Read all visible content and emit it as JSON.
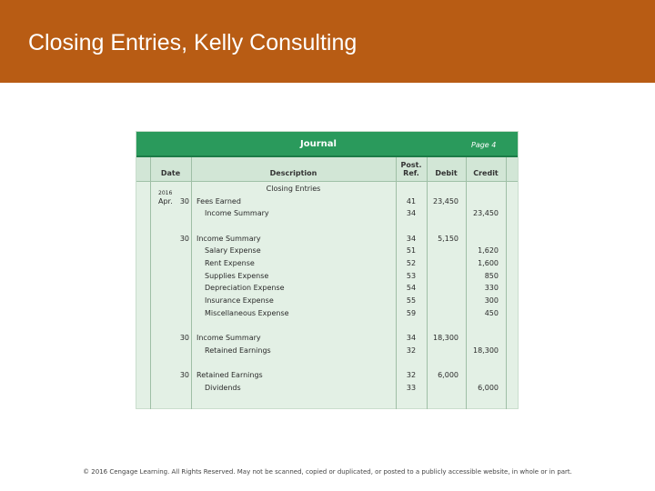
{
  "slide": {
    "title": "Closing Entries, Kelly Consulting",
    "accent_color": "#b85c14"
  },
  "journal": {
    "title": "Journal",
    "page": "Page 4",
    "header_color": "#2a9a5c",
    "columns": {
      "date": "Date",
      "description": "Description",
      "post_ref": [
        "Post.",
        "Ref."
      ],
      "debit": "Debit",
      "credit": "Credit"
    },
    "heading_note": "Closing Entries",
    "year": "2016",
    "month": "Apr.",
    "entries": [
      {
        "day": "30",
        "description": "Fees Earned",
        "indent": false,
        "ref": "41",
        "debit": "23,450",
        "credit": ""
      },
      {
        "day": "",
        "description": "Income Summary",
        "indent": true,
        "ref": "34",
        "debit": "",
        "credit": "23,450"
      },
      {
        "day": "30",
        "description": "Income Summary",
        "indent": false,
        "ref": "34",
        "debit": "5,150",
        "credit": ""
      },
      {
        "day": "",
        "description": "Salary Expense",
        "indent": true,
        "ref": "51",
        "debit": "",
        "credit": "1,620"
      },
      {
        "day": "",
        "description": "Rent Expense",
        "indent": true,
        "ref": "52",
        "debit": "",
        "credit": "1,600"
      },
      {
        "day": "",
        "description": "Supplies Expense",
        "indent": true,
        "ref": "53",
        "debit": "",
        "credit": "850"
      },
      {
        "day": "",
        "description": "Depreciation Expense",
        "indent": true,
        "ref": "54",
        "debit": "",
        "credit": "330"
      },
      {
        "day": "",
        "description": "Insurance Expense",
        "indent": true,
        "ref": "55",
        "debit": "",
        "credit": "300"
      },
      {
        "day": "",
        "description": "Miscellaneous Expense",
        "indent": true,
        "ref": "59",
        "debit": "",
        "credit": "450"
      },
      {
        "day": "30",
        "description": "Income Summary",
        "indent": false,
        "ref": "34",
        "debit": "18,300",
        "credit": ""
      },
      {
        "day": "",
        "description": "Retained Earnings",
        "indent": true,
        "ref": "32",
        "debit": "",
        "credit": "18,300"
      },
      {
        "day": "30",
        "description": "Retained Earnings",
        "indent": false,
        "ref": "32",
        "debit": "6,000",
        "credit": ""
      },
      {
        "day": "",
        "description": "Dividends",
        "indent": true,
        "ref": "33",
        "debit": "",
        "credit": "6,000"
      }
    ]
  },
  "footer": "© 2016 Cengage Learning. All Rights Reserved. May not be scanned, copied or duplicated, or posted to a publicly accessible website, in whole or in part."
}
